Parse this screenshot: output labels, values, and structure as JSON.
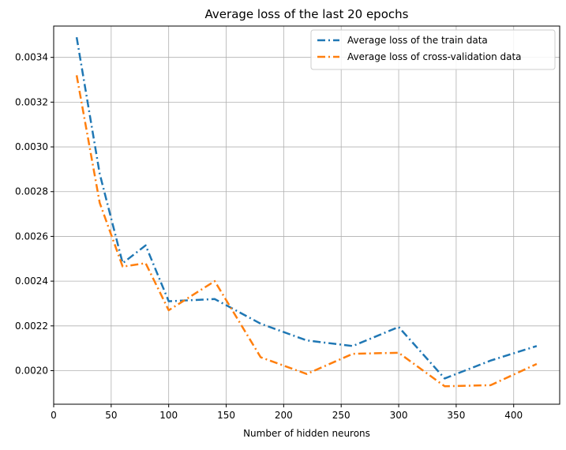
{
  "chart_data": {
    "type": "line",
    "title": "Average loss of the last 20 epochs",
    "xlabel": "Number of hidden neurons",
    "ylabel": "",
    "xlim": [
      0,
      440
    ],
    "ylim": [
      0.00185,
      0.00354
    ],
    "xticks": [
      0,
      50,
      100,
      150,
      200,
      250,
      300,
      350,
      400
    ],
    "xtick_labels": [
      "0",
      "50",
      "100",
      "150",
      "200",
      "250",
      "300",
      "350",
      "400"
    ],
    "yticks": [
      0.002,
      0.0022,
      0.0024,
      0.0026,
      0.0028,
      0.003,
      0.0032,
      0.0034
    ],
    "ytick_labels": [
      "0.0020",
      "0.0022",
      "0.0024",
      "0.0026",
      "0.0028",
      "0.0030",
      "0.0032",
      "0.0034"
    ],
    "grid": true,
    "legend_position": "top-right",
    "x": [
      20,
      40,
      60,
      80,
      100,
      140,
      180,
      220,
      260,
      300,
      340,
      380,
      420
    ],
    "series": [
      {
        "name": "Average loss of the train data",
        "color": "#1f77b4",
        "linestyle": "dashdot",
        "values": [
          0.00349,
          0.00288,
          0.00248,
          0.00256,
          0.00231,
          0.00232,
          0.00221,
          0.002135,
          0.00211,
          0.002195,
          0.001965,
          0.002045,
          0.00211
        ]
      },
      {
        "name": "Average loss of cross-validation data",
        "color": "#ff7f0e",
        "linestyle": "dashdot",
        "values": [
          0.00332,
          0.00275,
          0.002465,
          0.00248,
          0.00227,
          0.0024,
          0.00206,
          0.001985,
          0.002075,
          0.00208,
          0.00193,
          0.001935,
          0.00203
        ]
      }
    ]
  }
}
